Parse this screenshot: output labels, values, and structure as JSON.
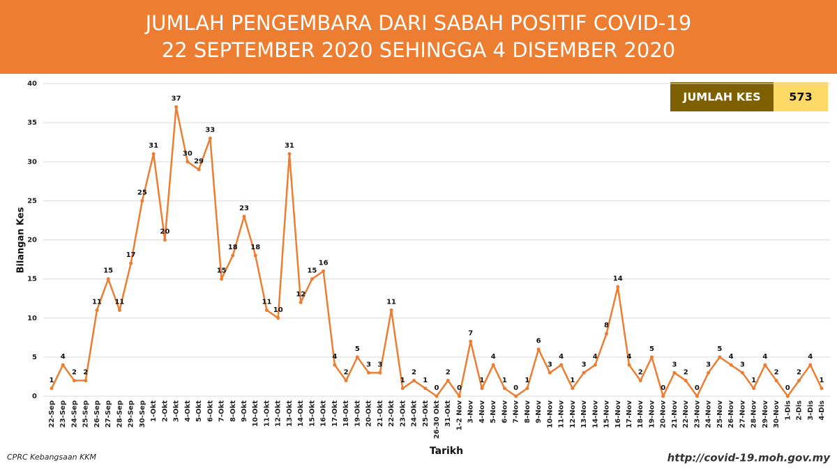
{
  "chart_data": {
    "type": "line",
    "title": [
      "JUMLAH PENGEMBARA DARI SABAH POSITIF COVID-19",
      "22 SEPTEMBER 2020 SEHINGGA 4 DISEMBER 2020"
    ],
    "xlabel": "Tarikh",
    "ylabel": "Bilangan Kes",
    "total_label": "JUMLAH KES",
    "total": 573,
    "source": "CPRC Kebangsaan KKM",
    "url": "http://covid-19.moh.gov.my",
    "categories": [
      "22-Sep",
      "23-Sep",
      "24-Sep",
      "25-Sep",
      "26-Sep",
      "27-Sep",
      "28-Sep",
      "29-Sep",
      "30-Sep",
      "1-Okt",
      "2-Okt",
      "3-Okt",
      "4-Okt",
      "5-Okt",
      "6-Okt",
      "7-Okt",
      "8-Okt",
      "9-Okt",
      "10-Okt",
      "11-Okt",
      "12-Okt",
      "13-Okt",
      "14-Okt",
      "15-Okt",
      "16-Okt",
      "17-Okt",
      "18-Okt",
      "19-Okt",
      "20-Okt",
      "21-Okt",
      "22-Okt",
      "23-Okt",
      "24-Okt",
      "25-Okt",
      "26-30 Okt",
      "31-Okt",
      "1-2 Nov",
      "3-Nov",
      "4-Nov",
      "5-Nov",
      "6-Nov",
      "7-Nov",
      "8-Nov",
      "9-Nov",
      "10-Nov",
      "11-Nov",
      "12-Nov",
      "13-Nov",
      "14-Nov",
      "15-Nov",
      "16-Nov",
      "17-Nov",
      "18-Nov",
      "19-Nov",
      "20-Nov",
      "21-Nov",
      "22-Nov",
      "23-Nov",
      "24-Nov",
      "25-Nov",
      "26-Nov",
      "27-Nov",
      "28-Nov",
      "29-Nov",
      "30-Nov",
      "1-Dis",
      "2-Dis",
      "3-Dis",
      "4-Dis"
    ],
    "values": [
      1,
      4,
      2,
      2,
      11,
      15,
      11,
      17,
      25,
      31,
      20,
      37,
      30,
      29,
      33,
      15,
      18,
      23,
      18,
      11,
      10,
      31,
      12,
      15,
      16,
      4,
      2,
      5,
      3,
      3,
      11,
      1,
      2,
      1,
      0,
      2,
      0,
      7,
      1,
      4,
      1,
      0,
      1,
      6,
      3,
      4,
      1,
      3,
      4,
      8,
      14,
      4,
      2,
      5,
      0,
      3,
      2,
      0,
      3,
      5,
      4,
      3,
      1,
      4,
      2,
      0,
      2,
      4,
      1
    ],
    "color": "#ed7d31",
    "ylim": [
      0,
      40
    ],
    "yticks": [
      0,
      5,
      10,
      15,
      20,
      25,
      30,
      35,
      40
    ],
    "grid": true
  }
}
